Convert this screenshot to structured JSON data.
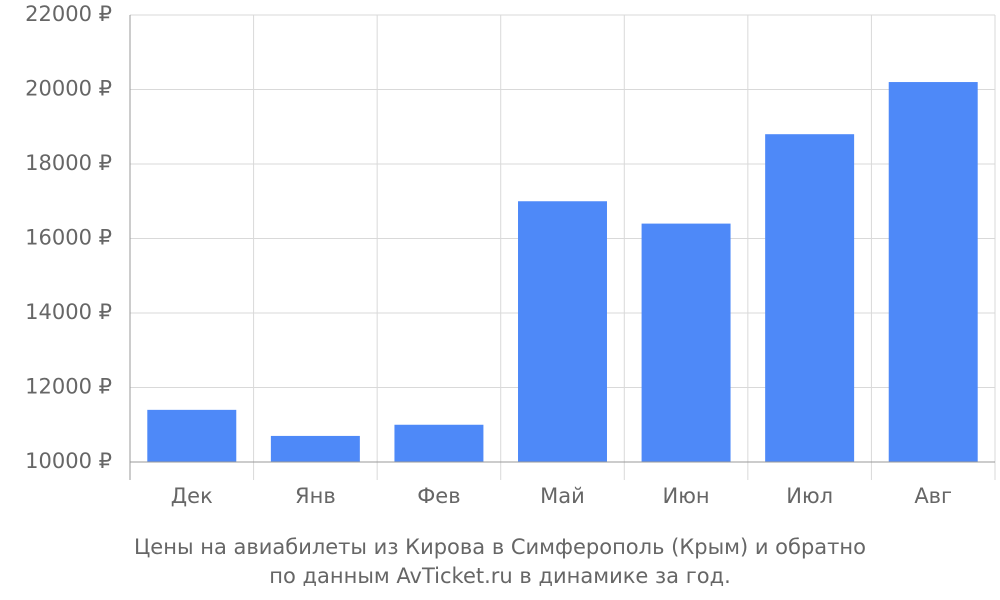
{
  "chart_data": {
    "type": "bar",
    "title": "Цены на авиабилеты из Кирова в Симферополь (Крым) и обратно",
    "subtitle": "по данным AvTicket.ru в динамике за год.",
    "categories": [
      "Дек",
      "Янв",
      "Фев",
      "Май",
      "Июн",
      "Июл",
      "Авг"
    ],
    "values": [
      11400,
      10700,
      11000,
      17000,
      16400,
      18800,
      20200
    ],
    "color": "#4e89f8",
    "ylim": [
      10000,
      22000
    ],
    "yticks": [
      {
        "value": 10000,
        "label": "10000 ₽"
      },
      {
        "value": 12000,
        "label": "12000 ₽"
      },
      {
        "value": 14000,
        "label": "14000 ₽"
      },
      {
        "value": 16000,
        "label": "16000 ₽"
      },
      {
        "value": 18000,
        "label": "18000 ₽"
      },
      {
        "value": 20000,
        "label": "20000 ₽"
      },
      {
        "value": 22000,
        "label": "22000 ₽"
      }
    ],
    "grid": true
  }
}
